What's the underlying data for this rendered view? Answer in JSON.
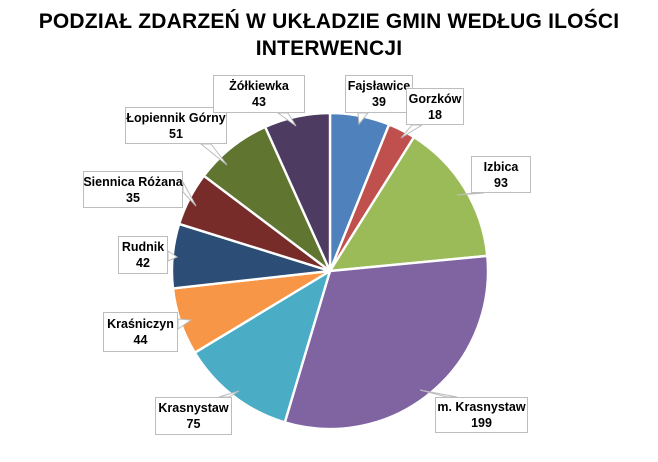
{
  "title": "PODZIAŁ ZDARZEŃ W UKŁADZIE GMIN WEDŁUG ILOŚCI INTERWENCJI",
  "chart_data": {
    "type": "pie",
    "title": "PODZIAŁ ZDARZEŃ W UKŁADZIE GMIN WEDŁUG ILOŚCI INTERWENCJI",
    "total": 639,
    "start_angle_deg": 0,
    "direction": "clockwise",
    "legend_position": "none",
    "label_style": "callout boxes with category name and value",
    "slice_border_color": "#ffffff",
    "background_color": "#ffffff",
    "series": [
      {
        "name": "Fajsławice",
        "value": 39,
        "color": "#4f81bd"
      },
      {
        "name": "Gorzków",
        "value": 18,
        "color": "#c0504d"
      },
      {
        "name": "Izbica",
        "value": 93,
        "color": "#9bbb59"
      },
      {
        "name": "m. Krasnystaw",
        "value": 199,
        "color": "#8064a2"
      },
      {
        "name": "Krasnystaw",
        "value": 75,
        "color": "#4bacc6"
      },
      {
        "name": "Kraśniczyn",
        "value": 44,
        "color": "#f79646"
      },
      {
        "name": "Rudnik",
        "value": 42,
        "color": "#2c4d75"
      },
      {
        "name": "Siennica Różana",
        "value": 35,
        "color": "#772c2a"
      },
      {
        "name": "Łopiennik Górny",
        "value": 51,
        "color": "#5f7530"
      },
      {
        "name": "Żółkiewka",
        "value": 43,
        "color": "#4d3b62"
      }
    ]
  }
}
